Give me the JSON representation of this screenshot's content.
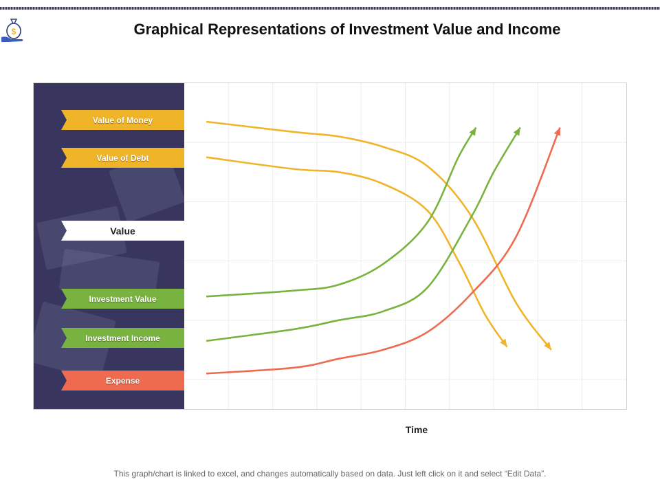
{
  "page": {
    "title": "Graphical Representations of Investment Value and Income",
    "footer": "This graph/chart is linked to excel, and changes automatically based on data. Just left click on it and select “Edit Data”.",
    "logo_icon": "money-bag-hand-icon"
  },
  "colors": {
    "yellow": "#f0b429",
    "green": "#79b33f",
    "red": "#ef6b50",
    "panel": "#38365e",
    "grid": "#ececec"
  },
  "chart_data": {
    "type": "line",
    "xlabel": "Time",
    "ylabel": "",
    "xlim": [
      0,
      10
    ],
    "ylim": [
      0,
      11
    ],
    "grid": true,
    "legend_position": "left",
    "value_label": "Value",
    "series": [
      {
        "name": "Value of Money",
        "color": "#f0b429",
        "x": [
          0.5,
          2.5,
          3.5,
          4.5,
          5.5,
          6.5,
          7.5,
          8.3
        ],
        "y": [
          9.7,
          9.35,
          9.2,
          8.85,
          8.2,
          6.5,
          3.6,
          2.0
        ]
      },
      {
        "name": "Value of Debt",
        "color": "#f0b429",
        "x": [
          0.5,
          2.5,
          3.5,
          4.5,
          5.5,
          6.2,
          6.8,
          7.3
        ],
        "y": [
          8.5,
          8.1,
          8.0,
          7.6,
          6.7,
          5.0,
          3.2,
          2.1
        ]
      },
      {
        "name": "Investment Value",
        "color": "#79b33f",
        "x": [
          0.5,
          2.5,
          3.5,
          4.5,
          5.5,
          6.2,
          6.6
        ],
        "y": [
          3.8,
          4.0,
          4.2,
          4.9,
          6.3,
          8.5,
          9.5
        ]
      },
      {
        "name": "Investment Income",
        "color": "#79b33f",
        "x": [
          0.5,
          2.5,
          3.5,
          4.5,
          5.5,
          6.5,
          7.0,
          7.6
        ],
        "y": [
          2.3,
          2.7,
          3.0,
          3.3,
          4.1,
          6.5,
          8.0,
          9.5
        ]
      },
      {
        "name": "Expense",
        "color": "#ef6b50",
        "x": [
          0.5,
          2.5,
          3.5,
          4.5,
          5.5,
          6.5,
          7.5,
          8.5
        ],
        "y": [
          1.2,
          1.4,
          1.7,
          2.0,
          2.6,
          3.9,
          5.8,
          9.5
        ]
      }
    ]
  }
}
